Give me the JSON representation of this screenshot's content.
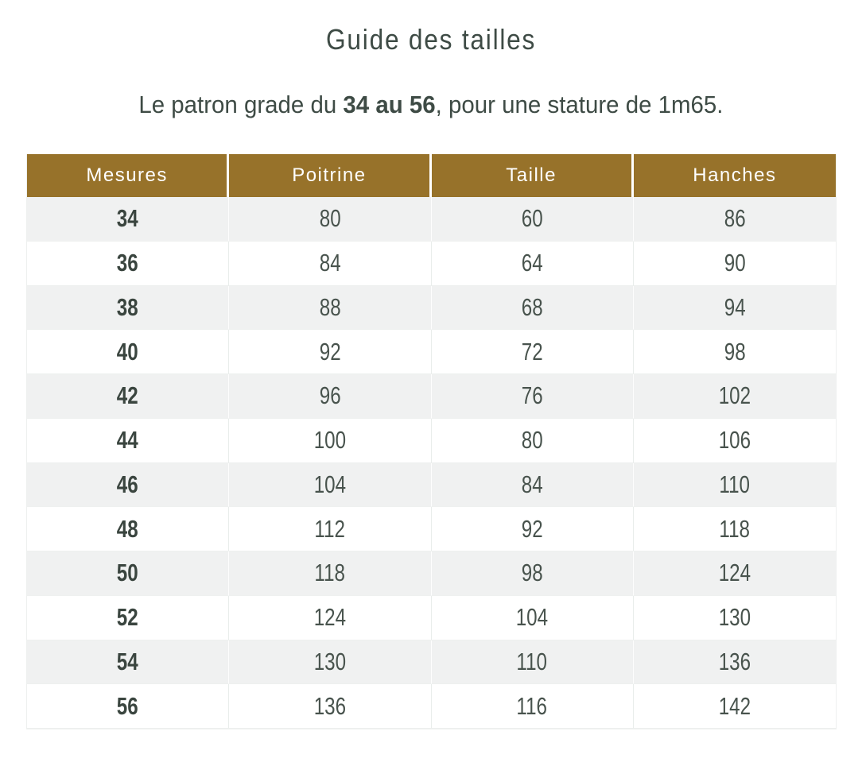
{
  "page": {
    "title": "Guide des tailles",
    "subtitle": {
      "prefix": "Le patron grade du ",
      "highlight": "34 au 56",
      "suffix": ", pour une stature de 1m65."
    }
  },
  "table": {
    "columns": [
      "Mesures",
      "Poitrine",
      "Taille",
      "Hanches"
    ],
    "rows": [
      [
        "34",
        "80",
        "60",
        "86"
      ],
      [
        "36",
        "84",
        "64",
        "90"
      ],
      [
        "38",
        "88",
        "68",
        "94"
      ],
      [
        "40",
        "92",
        "72",
        "98"
      ],
      [
        "42",
        "96",
        "76",
        "102"
      ],
      [
        "44",
        "100",
        "80",
        "106"
      ],
      [
        "46",
        "104",
        "84",
        "110"
      ],
      [
        "48",
        "112",
        "92",
        "118"
      ],
      [
        "50",
        "118",
        "98",
        "124"
      ],
      [
        "52",
        "124",
        "104",
        "130"
      ],
      [
        "54",
        "130",
        "110",
        "136"
      ],
      [
        "56",
        "136",
        "116",
        "142"
      ]
    ]
  },
  "colors": {
    "header_bg": "#97722a",
    "header_text": "#ffffff",
    "row_alt_bg": "#f0f1f1",
    "body_text": "#48534d",
    "size_text": "#3a453f",
    "title_text": "#3e4b45"
  }
}
